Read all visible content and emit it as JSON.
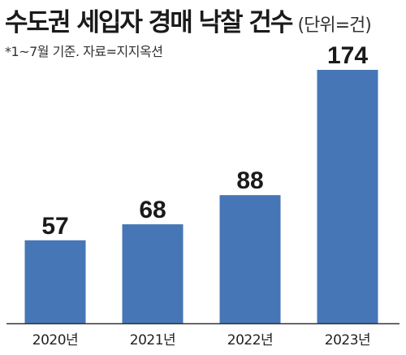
{
  "title": "수도권 세입자 경매 낙찰 건수",
  "unit": "(단위=건)",
  "note": "*1~7월 기준. 자료=지지옥션",
  "chart_data": {
    "type": "bar",
    "categories": [
      "2020년",
      "2021년",
      "2022년",
      "2023년"
    ],
    "values": [
      57,
      68,
      88,
      174
    ],
    "ylim": [
      0,
      174
    ],
    "data_labels": true,
    "grid": false,
    "bar_color": "#4676b5"
  }
}
